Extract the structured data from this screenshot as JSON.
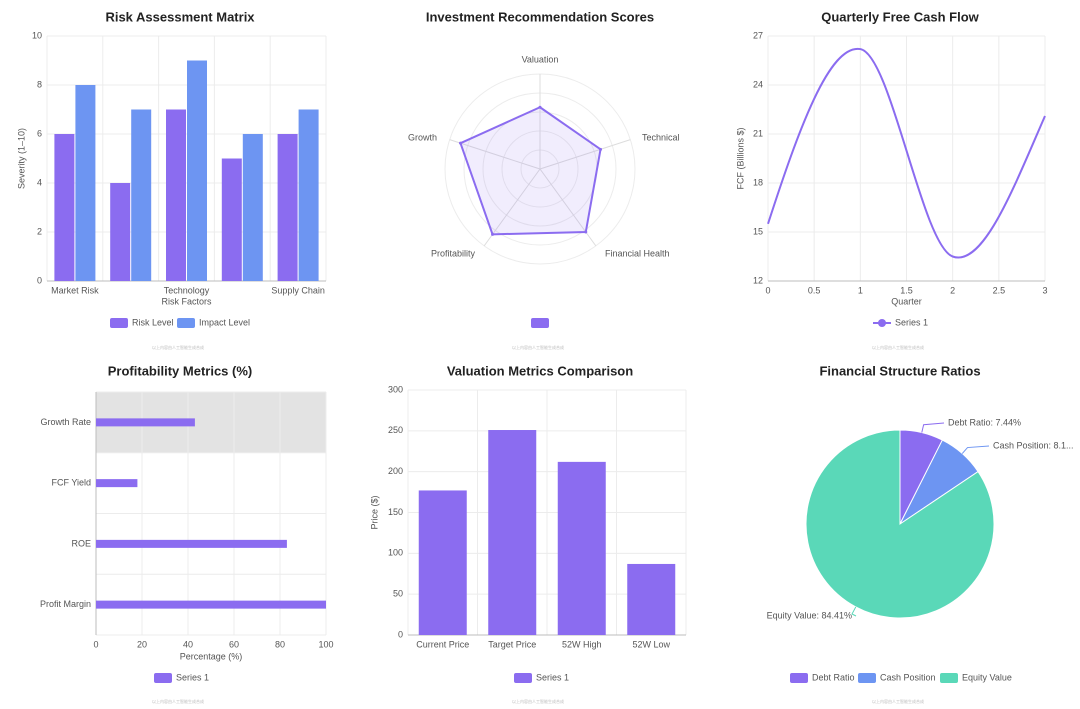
{
  "colors": {
    "purple": "#8b6cf0",
    "blue": "#6d95f2",
    "teal": "#5ad8b8",
    "grid": "#ececec",
    "axis": "#bdbdbd",
    "text": "#555555",
    "title": "#222222",
    "highlight": "#e3e3e3",
    "line": "#8b6cf0"
  },
  "watermark": "以上内容由人工智能生成合成",
  "chart_data": [
    {
      "id": "risk",
      "type": "bar",
      "title": "Risk Assessment Matrix",
      "xlabel": "Risk Factors",
      "ylabel": "Severity (1–10)",
      "ylim": [
        0,
        10
      ],
      "yticks": [
        0,
        2,
        4,
        6,
        8,
        10
      ],
      "categories": [
        "Market Risk",
        "",
        "Technology",
        "",
        "Supply Chain"
      ],
      "series": [
        {
          "name": "Risk Level",
          "values": [
            6,
            4,
            7,
            5,
            6
          ],
          "color": "#8b6cf0"
        },
        {
          "name": "Impact Level",
          "values": [
            8,
            7,
            9,
            6,
            7
          ],
          "color": "#6d95f2"
        }
      ],
      "legend": "bottom"
    },
    {
      "id": "radar",
      "type": "radar",
      "title": "Investment Recommendation Scores",
      "axes": [
        "Valuation",
        "Technical",
        "Financial Health",
        "Profitability",
        "Growth"
      ],
      "values": [
        65,
        67,
        82,
        85,
        88
      ],
      "rmax": 100,
      "rings": 5,
      "legend": "bottom"
    },
    {
      "id": "fcf",
      "type": "line",
      "title": "Quarterly Free Cash Flow",
      "xlabel": "Quarter",
      "ylabel": "FCF (Billions $)",
      "x": [
        0,
        1,
        2,
        3
      ],
      "y": [
        15.5,
        26.2,
        13.5,
        22.1
      ],
      "xlim": [
        0,
        3
      ],
      "ylim": [
        12,
        27
      ],
      "xticks": [
        "0",
        "0.5",
        "1",
        "1.5",
        "2",
        "2.5",
        "3"
      ],
      "yticks": [
        12,
        15,
        18,
        21,
        24,
        27
      ],
      "series_name": "Series 1",
      "legend": "bottom"
    },
    {
      "id": "profit",
      "type": "bar",
      "orientation": "horizontal",
      "title": "Profitability Metrics (%)",
      "xlabel": "Percentage (%)",
      "categories": [
        "Growth Rate",
        "FCF Yield",
        "ROE",
        "Profit Margin"
      ],
      "values": [
        43,
        18,
        83,
        100
      ],
      "xlim": [
        0,
        100
      ],
      "xticks": [
        0,
        20,
        40,
        60,
        80,
        100
      ],
      "series_name": "Series 1",
      "highlighted_category": "Growth Rate",
      "legend": "bottom"
    },
    {
      "id": "valuation",
      "type": "bar",
      "title": "Valuation Metrics Comparison",
      "ylabel": "Price ($)",
      "categories": [
        "Current Price",
        "Target Price",
        "52W High",
        "52W Low"
      ],
      "values": [
        177,
        251,
        212,
        87
      ],
      "ylim": [
        0,
        300
      ],
      "yticks": [
        0,
        50,
        100,
        150,
        200,
        250,
        300
      ],
      "series_name": "Series 1",
      "legend": "bottom"
    },
    {
      "id": "structure",
      "type": "pie",
      "title": "Financial Structure Ratios",
      "slices": [
        {
          "name": "Debt Ratio",
          "value": 7.44,
          "label": "Debt Ratio: 7.44%",
          "color": "#8b6cf0"
        },
        {
          "name": "Cash Position",
          "value": 8.15,
          "label": "Cash Position: 8.1...",
          "color": "#6d95f2"
        },
        {
          "name": "Equity Value",
          "value": 84.41,
          "label": "Equity Value: 84.41%",
          "color": "#5ad8b8"
        }
      ],
      "legend": "bottom"
    }
  ]
}
